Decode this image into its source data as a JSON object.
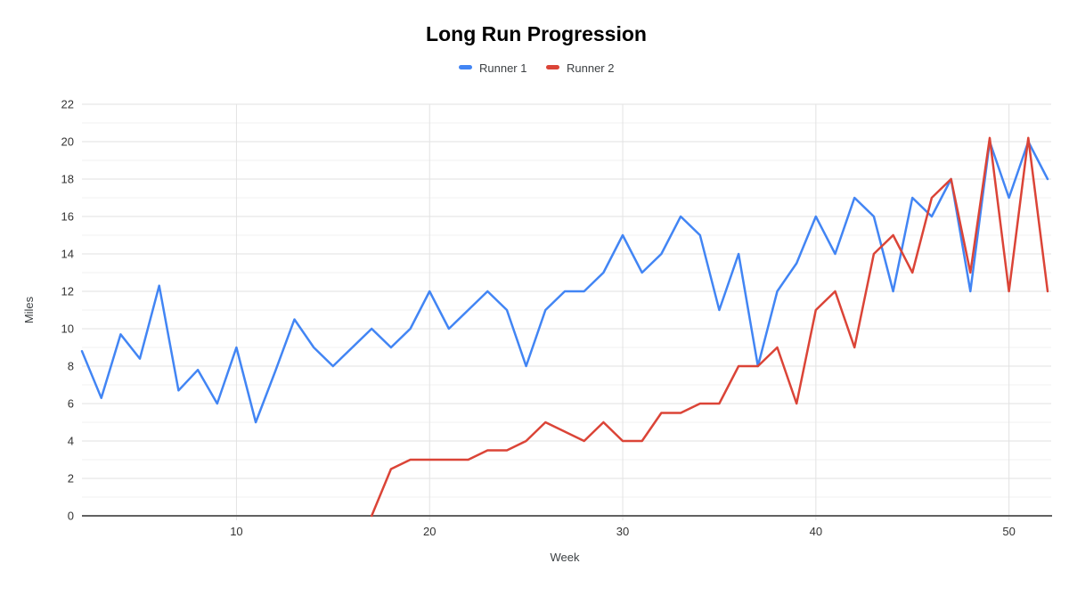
{
  "title": "Long Run Progression",
  "colors": {
    "runner1": "#4285F4",
    "runner2": "#DB4437",
    "grid_major": "#e2e2e2",
    "grid_minor": "#f2f2f2",
    "axis_baseline": "#616161"
  },
  "chart_data": {
    "type": "line",
    "title": "Long Run Progression",
    "xlabel": "Week",
    "ylabel": "Miles",
    "xlim": [
      2,
      52
    ],
    "ylim": [
      0,
      22
    ],
    "x_ticks": [
      10,
      20,
      30,
      40,
      50
    ],
    "y_ticks": [
      0,
      2,
      4,
      6,
      8,
      10,
      12,
      14,
      16,
      18,
      20,
      22
    ],
    "legend_position": "top-center",
    "grid": {
      "horizontal_major": true,
      "horizontal_minor": true,
      "vertical_major": true
    },
    "series": [
      {
        "name": "Runner 1",
        "color": "#4285F4",
        "x": [
          2,
          3,
          4,
          5,
          6,
          7,
          8,
          9,
          10,
          11,
          12,
          13,
          14,
          15,
          16,
          17,
          18,
          19,
          20,
          21,
          22,
          23,
          24,
          25,
          26,
          27,
          28,
          29,
          30,
          31,
          32,
          33,
          34,
          35,
          36,
          37,
          38,
          39,
          40,
          41,
          42,
          43,
          44,
          45,
          46,
          47,
          48,
          49,
          50,
          51,
          52
        ],
        "values": [
          8.8,
          6.3,
          9.7,
          8.4,
          12.3,
          6.7,
          7.8,
          6,
          9,
          5,
          7.7,
          10.5,
          9,
          8,
          9,
          10,
          9,
          10,
          12,
          10,
          11,
          12,
          11,
          8,
          11,
          12,
          12,
          13,
          15,
          13,
          14,
          16,
          15,
          11,
          14,
          8,
          12,
          13.5,
          16,
          14,
          17,
          16,
          12,
          17,
          16,
          18,
          12,
          20,
          17,
          20,
          18
        ]
      },
      {
        "name": "Runner 2",
        "color": "#DB4437",
        "x": [
          17,
          18,
          19,
          20,
          21,
          22,
          23,
          24,
          25,
          26,
          27,
          28,
          29,
          30,
          31,
          32,
          33,
          34,
          35,
          36,
          37,
          38,
          39,
          40,
          41,
          42,
          43,
          44,
          45,
          46,
          47,
          48,
          49,
          50,
          51,
          52
        ],
        "values": [
          0,
          2.5,
          3,
          3,
          3,
          3,
          3.5,
          3.5,
          4,
          5,
          4.5,
          4,
          5,
          4,
          4,
          5.5,
          5.5,
          6,
          6,
          8,
          8,
          9,
          6,
          11,
          12,
          9,
          14,
          15,
          13,
          17,
          18,
          13,
          20.2,
          12,
          20.2,
          12
        ]
      }
    ]
  }
}
